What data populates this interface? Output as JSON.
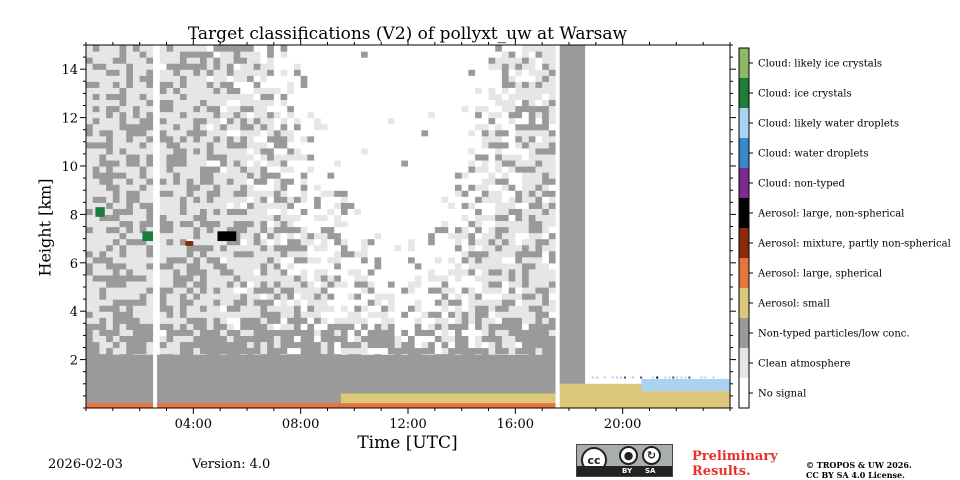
{
  "chart_data": {
    "type": "heatmap",
    "title": "Target classifications (V2) of pollyxt_uw at Warsaw",
    "xlabel": "Time [UTC]",
    "ylabel": "Height [km]",
    "x_unit": "hours UTC",
    "xlim": [
      0,
      24
    ],
    "ylim": [
      0,
      15
    ],
    "x_ticks": [
      {
        "value": 4,
        "label": "04:00"
      },
      {
        "value": 8,
        "label": "08:00"
      },
      {
        "value": 12,
        "label": "12:00"
      },
      {
        "value": 16,
        "label": "16:00"
      },
      {
        "value": 20,
        "label": "20:00"
      }
    ],
    "y_ticks": [
      {
        "value": 2,
        "label": "2"
      },
      {
        "value": 4,
        "label": "4"
      },
      {
        "value": 6,
        "label": "6"
      },
      {
        "value": 8,
        "label": "8"
      },
      {
        "value": 10,
        "label": "10"
      },
      {
        "value": 12,
        "label": "12"
      },
      {
        "value": 14,
        "label": "14"
      }
    ],
    "classes": [
      {
        "label": "No signal",
        "color": "#ffffff"
      },
      {
        "label": "Clean atmosphere",
        "color": "#e6e6e6"
      },
      {
        "label": "Non-typed particles/low conc.",
        "color": "#9a9a9a"
      },
      {
        "label": "Aerosol: small",
        "color": "#dcc87a"
      },
      {
        "label": "Aerosol: large, spherical",
        "color": "#e8733c"
      },
      {
        "label": "Aerosol: mixture, partly non-spherical",
        "color": "#8a2a0a"
      },
      {
        "label": "Aerosol: large, non-spherical",
        "color": "#000000"
      },
      {
        "label": "Cloud: non-typed",
        "color": "#7d2b8e"
      },
      {
        "label": "Cloud: water droplets",
        "color": "#3a89c9"
      },
      {
        "label": "Cloud: likely water droplets",
        "color": "#a9d3f0"
      },
      {
        "label": "Cloud: ice crystals",
        "color": "#1e7b3a"
      },
      {
        "label": "Cloud: likely ice crystals",
        "color": "#8fb865"
      }
    ],
    "data_gaps_hours": [
      [
        2.5,
        2.65
      ],
      [
        17.5,
        17.65
      ]
    ],
    "regions": [
      {
        "class": "Non-typed particles/low conc.",
        "t_start": 0,
        "t_end": 17.5,
        "h_start": 0.1,
        "h_end": 2.2
      },
      {
        "class": "Aerosol: small",
        "t_start": 9.5,
        "t_end": 17.5,
        "h_start": 0.05,
        "h_end": 0.6
      },
      {
        "class": "Aerosol: large, spherical",
        "t_start": 0,
        "t_end": 17.5,
        "h_start": 0.0,
        "h_end": 0.2
      },
      {
        "class": "Aerosol: small",
        "t_start": 17.65,
        "t_end": 24,
        "h_start": 0.0,
        "h_end": 1.0
      },
      {
        "class": "Cloud: likely water droplets",
        "t_start": 20.7,
        "t_end": 24,
        "h_start": 0.7,
        "h_end": 1.2
      },
      {
        "class": "Non-typed particles/low conc.",
        "t_start": 17.65,
        "t_end": 18.6,
        "h_start": 1.0,
        "h_end": 15
      },
      {
        "class": "Cloud: ice crystals",
        "t_start": 0.35,
        "t_end": 0.7,
        "h_start": 7.9,
        "h_end": 8.3
      },
      {
        "class": "Cloud: ice crystals",
        "t_start": 2.1,
        "t_end": 2.5,
        "h_start": 6.9,
        "h_end": 7.3
      },
      {
        "class": "Aerosol: large, non-spherical",
        "t_start": 4.9,
        "t_end": 5.6,
        "h_start": 6.9,
        "h_end": 7.3
      },
      {
        "class": "Aerosol: mixture, partly non-spherical",
        "t_start": 3.7,
        "t_end": 4.0,
        "h_start": 6.7,
        "h_end": 6.9
      }
    ]
  },
  "footer": {
    "date": "2026-02-03",
    "version": "Version: 4.0",
    "license_badge": {
      "cc": "cc",
      "by": "BY",
      "sa": "SA"
    },
    "preliminary_line1": "Preliminary",
    "preliminary_line2": "Results.",
    "copyright_line1": "© TROPOS & UW 2026.",
    "copyright_line2": "CC BY SA 4.0 License."
  }
}
